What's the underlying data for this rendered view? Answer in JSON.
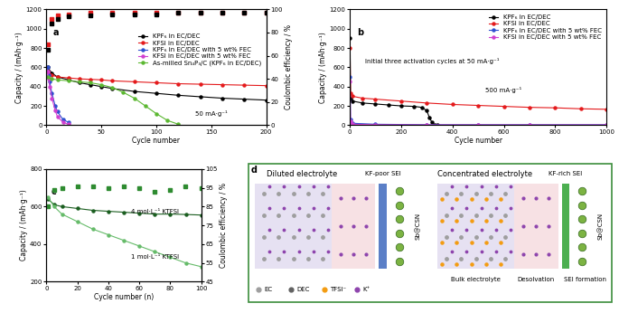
{
  "chart_data": [
    {
      "type": "line",
      "panel_label": "a",
      "x_label": "Cycle number",
      "y_label": "Capacity / (mAh·g⁻¹)",
      "y2_label": "Coulombic efficiency / %",
      "xlim": [
        0,
        200
      ],
      "xticks": [
        0,
        50,
        100,
        150,
        200
      ],
      "ylim": [
        0,
        1200
      ],
      "yticks": [
        0,
        200,
        400,
        600,
        800,
        1000,
        1200
      ],
      "y2lim": [
        0,
        100
      ],
      "y2ticks": [
        0,
        20,
        40,
        60,
        80,
        100
      ],
      "legend": "center right",
      "annotations": [
        "50 mA·g⁻¹"
      ],
      "series": [
        {
          "name": "KPF₆ in EC/DEC",
          "color": "#000000",
          "marker": "circle",
          "line_style": "solid",
          "x": [
            1,
            5,
            10,
            20,
            30,
            40,
            50,
            60,
            80,
            100,
            120,
            140,
            160,
            180,
            200
          ],
          "values": [
            600,
            540,
            500,
            470,
            440,
            420,
            400,
            380,
            350,
            330,
            310,
            295,
            280,
            270,
            260
          ]
        },
        {
          "name": "KFSI in EC/DEC",
          "color": "#e41a1c",
          "marker": "circle",
          "line_style": "solid",
          "x": [
            1,
            5,
            10,
            20,
            30,
            40,
            50,
            60,
            80,
            100,
            120,
            140,
            160,
            180,
            200
          ],
          "values": [
            560,
            520,
            500,
            490,
            480,
            475,
            470,
            460,
            450,
            440,
            430,
            425,
            420,
            415,
            410
          ]
        },
        {
          "name": "KPF₆ in EC/DEC with 5 wt% FEC",
          "color": "#3050d0",
          "marker": "circle",
          "line_style": "solid",
          "x": [
            1,
            2,
            3,
            5,
            8,
            10,
            15,
            20
          ],
          "values": [
            600,
            520,
            450,
            330,
            200,
            140,
            60,
            30
          ]
        },
        {
          "name": "KFSI in EC/DEC with 5 wt% FEC",
          "color": "#d040d0",
          "marker": "circle",
          "line_style": "solid",
          "x": [
            1,
            2,
            3,
            5,
            8,
            10,
            15,
            20
          ],
          "values": [
            560,
            480,
            400,
            280,
            150,
            90,
            30,
            10
          ]
        },
        {
          "name": "As-milled Sn₄P₃/C (KPF₆ in EC/DEC)",
          "color": "#5cb832",
          "marker": "circle",
          "line_style": "solid",
          "x": [
            1,
            5,
            10,
            20,
            30,
            40,
            50,
            60,
            70,
            80,
            90,
            100,
            110,
            120
          ],
          "values": [
            500,
            480,
            470,
            460,
            450,
            440,
            420,
            390,
            340,
            280,
            200,
            120,
            50,
            10
          ]
        },
        {
          "axis": "y2",
          "color": "#e41a1c",
          "marker": "square",
          "line_style": "none",
          "x": [
            1,
            5,
            10,
            20,
            40,
            60,
            80,
            100,
            120,
            140,
            160,
            180,
            200
          ],
          "values": [
            70,
            92,
            95,
            96,
            97,
            97,
            97,
            97,
            97,
            97,
            97,
            97,
            97
          ]
        },
        {
          "axis": "y2",
          "color": "#000000",
          "marker": "square",
          "line_style": "none",
          "x": [
            1,
            5,
            10,
            20,
            40,
            60,
            80,
            100,
            120,
            140,
            160,
            180,
            200
          ],
          "values": [
            65,
            88,
            92,
            94,
            95,
            96,
            96,
            96,
            97,
            97,
            97,
            97,
            97
          ]
        }
      ]
    },
    {
      "type": "line",
      "panel_label": "b",
      "x_label": "Cycle number",
      "y_label": "Capacity / (mAh·g⁻¹)",
      "xlim": [
        0,
        1000
      ],
      "xticks": [
        0,
        200,
        400,
        600,
        800,
        1000
      ],
      "ylim": [
        0,
        1200
      ],
      "yticks": [
        0,
        200,
        400,
        600,
        800,
        1000,
        1200
      ],
      "legend": "upper right",
      "annotations": [
        "Initial three activation cycles at 50 mA·g⁻¹",
        "500 mA·g⁻¹"
      ],
      "series": [
        {
          "name": "KPF₆ in EC/DEC",
          "color": "#000000",
          "marker": "circle",
          "line_style": "solid",
          "x": [
            1,
            3,
            10,
            50,
            100,
            150,
            200,
            250,
            280,
            300,
            310,
            320,
            330,
            340
          ],
          "values": [
            900,
            280,
            250,
            230,
            220,
            210,
            200,
            195,
            185,
            150,
            80,
            30,
            5,
            0
          ]
        },
        {
          "name": "KFSI in EC/DEC",
          "color": "#e41a1c",
          "marker": "circle",
          "line_style": "solid",
          "x": [
            1,
            3,
            10,
            50,
            100,
            200,
            300,
            400,
            500,
            600,
            700,
            800,
            900,
            1000
          ],
          "values": [
            800,
            330,
            300,
            280,
            270,
            250,
            230,
            215,
            205,
            195,
            185,
            180,
            170,
            165
          ]
        },
        {
          "name": "KPF₆ in EC/DEC with 5 wt% FEC",
          "color": "#3050d0",
          "marker": "circle",
          "line_style": "solid",
          "x": [
            1,
            3,
            10,
            100,
            300,
            500,
            700,
            1000
          ],
          "values": [
            500,
            60,
            20,
            10,
            5,
            5,
            5,
            5
          ]
        },
        {
          "name": "KFSI in EC/DEC with 5 wt% FEC",
          "color": "#d040d0",
          "marker": "circle",
          "line_style": "solid",
          "x": [
            1,
            3,
            10,
            100,
            300,
            500,
            700,
            1000
          ],
          "values": [
            450,
            40,
            10,
            5,
            3,
            3,
            3,
            3
          ]
        }
      ]
    },
    {
      "type": "line",
      "panel_label": "c",
      "x_label": "Cycle number (n)",
      "y_label": "Capacity / (mAh·g⁻¹)",
      "y2_label": "Coulombic efficiency / %",
      "xlim": [
        0,
        100
      ],
      "xticks": [
        0,
        20,
        40,
        60,
        80,
        100
      ],
      "ylim": [
        200,
        800
      ],
      "yticks": [
        200,
        400,
        600,
        800
      ],
      "y2lim": [
        45,
        105
      ],
      "y2ticks": [
        45,
        55,
        65,
        75,
        85,
        95,
        105
      ],
      "annotations": [
        "4 mol·L⁻¹ KTFSI",
        "1 mol·L⁻¹ KTFSI"
      ],
      "series": [
        {
          "color": "#1b5e20",
          "marker": "circle",
          "line_style": "solid",
          "x": [
            1,
            5,
            10,
            20,
            30,
            40,
            50,
            60,
            70,
            80,
            90,
            100
          ],
          "values": [
            640,
            610,
            600,
            590,
            580,
            575,
            570,
            565,
            560,
            560,
            558,
            555
          ]
        },
        {
          "color": "#66bb6a",
          "marker": "circle",
          "line_style": "solid",
          "x": [
            1,
            5,
            10,
            20,
            30,
            40,
            50,
            60,
            70,
            80,
            90,
            100
          ],
          "values": [
            650,
            600,
            560,
            520,
            480,
            450,
            420,
            390,
            360,
            330,
            300,
            280
          ]
        },
        {
          "axis": "y2",
          "color": "#2e8b30",
          "marker": "square",
          "line_style": "none",
          "x": [
            1,
            5,
            10,
            20,
            30,
            40,
            50,
            60,
            70,
            80,
            90,
            100
          ],
          "values": [
            85,
            94,
            95,
            96,
            96,
            95,
            96,
            95,
            93,
            94,
            96,
            95
          ]
        }
      ]
    }
  ],
  "diagram": {
    "panel_label": "d",
    "panels": [
      {
        "title": "Diluted electrolyte",
        "sei": "KF-poor SEI",
        "electrode": "Sb@CSN"
      },
      {
        "title": "Concentrated electrolyte",
        "sei": "KF-rich SEI",
        "electrode": "Sb@CSN"
      }
    ],
    "stages": [
      "Bulk electrolyte",
      "Desolvation",
      "SEI formation"
    ],
    "species": [
      "EC",
      "DEC",
      "TFSI⁻",
      "K⁺"
    ]
  }
}
